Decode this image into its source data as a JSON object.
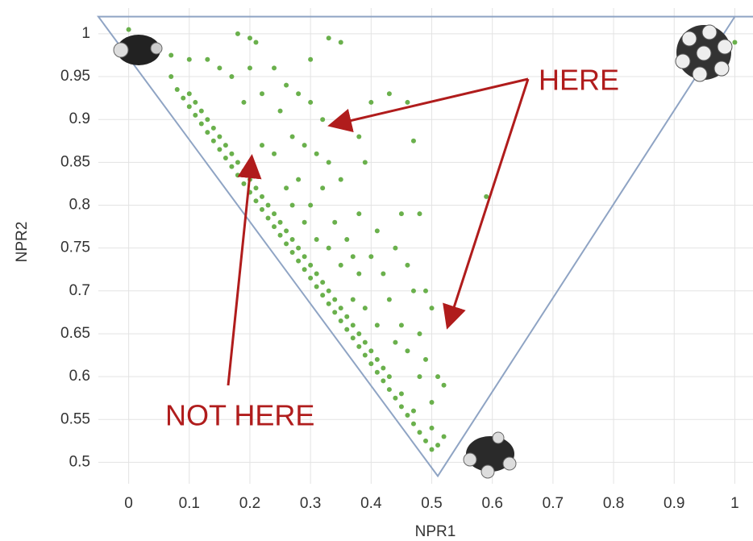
{
  "chart_data": {
    "type": "scatter",
    "xlabel": "NPR1",
    "ylabel": "NPR2",
    "xlim": [
      -0.05,
      1.03
    ],
    "ylim": [
      0.475,
      1.03
    ],
    "xticks": [
      0,
      0.1,
      0.2,
      0.3,
      0.4,
      0.5,
      0.6,
      0.7,
      0.8,
      0.9,
      1
    ],
    "yticks": [
      0.5,
      0.55,
      0.6,
      0.65,
      0.7,
      0.75,
      0.8,
      0.85,
      0.9,
      0.95,
      1
    ],
    "grid": true,
    "color": "#6ab04c",
    "line_color": "#8fa4c4",
    "reference_lines": {
      "x": [
        1.03,
        -0.05,
        0.51,
        1.0
      ],
      "y": [
        1.02,
        1.02,
        0.484,
        1.02
      ]
    },
    "annotations": [
      "HERE",
      "NOT HERE"
    ],
    "x": [
      0.07,
      0.08,
      0.09,
      0.1,
      0.1,
      0.11,
      0.11,
      0.12,
      0.12,
      0.13,
      0.13,
      0.14,
      0.14,
      0.15,
      0.15,
      0.16,
      0.16,
      0.17,
      0.17,
      0.18,
      0.18,
      0.19,
      0.19,
      0.2,
      0.2,
      0.21,
      0.21,
      0.22,
      0.22,
      0.23,
      0.23,
      0.24,
      0.24,
      0.25,
      0.25,
      0.26,
      0.26,
      0.27,
      0.27,
      0.28,
      0.28,
      0.29,
      0.29,
      0.3,
      0.3,
      0.31,
      0.31,
      0.32,
      0.32,
      0.33,
      0.33,
      0.34,
      0.34,
      0.35,
      0.35,
      0.36,
      0.36,
      0.37,
      0.37,
      0.38,
      0.38,
      0.39,
      0.39,
      0.4,
      0.4,
      0.41,
      0.41,
      0.42,
      0.42,
      0.43,
      0.43,
      0.44,
      0.45,
      0.45,
      0.46,
      0.47,
      0.47,
      0.48,
      0.49,
      0.5,
      0.51,
      0.0,
      0.18,
      0.2,
      0.21,
      0.33,
      0.35,
      1.0,
      0.07,
      0.1,
      0.13,
      0.15,
      0.17,
      0.2,
      0.24,
      0.3,
      0.26,
      0.28,
      0.3,
      0.32,
      0.22,
      0.19,
      0.25,
      0.27,
      0.29,
      0.31,
      0.33,
      0.36,
      0.38,
      0.4,
      0.43,
      0.46,
      0.47,
      0.39,
      0.35,
      0.32,
      0.28,
      0.24,
      0.22,
      0.26,
      0.3,
      0.34,
      0.36,
      0.38,
      0.41,
      0.45,
      0.48,
      0.59,
      0.4,
      0.42,
      0.44,
      0.46,
      0.38,
      0.35,
      0.33,
      0.31,
      0.29,
      0.43,
      0.45,
      0.47,
      0.49,
      0.5,
      0.48,
      0.46,
      0.44,
      0.41,
      0.39,
      0.37,
      0.49,
      0.51,
      0.5,
      0.52,
      0.48,
      0.5,
      0.52,
      0.37,
      0.27
    ],
    "values": [
      0.95,
      0.935,
      0.925,
      0.915,
      0.93,
      0.905,
      0.92,
      0.895,
      0.91,
      0.885,
      0.9,
      0.875,
      0.89,
      0.865,
      0.88,
      0.855,
      0.87,
      0.845,
      0.86,
      0.835,
      0.85,
      0.825,
      0.84,
      0.815,
      0.83,
      0.805,
      0.82,
      0.795,
      0.81,
      0.785,
      0.8,
      0.775,
      0.79,
      0.765,
      0.78,
      0.755,
      0.77,
      0.745,
      0.76,
      0.735,
      0.75,
      0.725,
      0.74,
      0.715,
      0.73,
      0.705,
      0.72,
      0.695,
      0.71,
      0.685,
      0.7,
      0.675,
      0.69,
      0.665,
      0.68,
      0.655,
      0.67,
      0.645,
      0.66,
      0.635,
      0.65,
      0.625,
      0.64,
      0.615,
      0.63,
      0.605,
      0.62,
      0.595,
      0.61,
      0.585,
      0.6,
      0.575,
      0.565,
      0.58,
      0.555,
      0.545,
      0.56,
      0.535,
      0.525,
      0.515,
      0.52,
      1.005,
      1.0,
      0.995,
      0.99,
      0.995,
      0.99,
      0.99,
      0.975,
      0.97,
      0.97,
      0.96,
      0.95,
      0.96,
      0.96,
      0.97,
      0.94,
      0.93,
      0.92,
      0.9,
      0.93,
      0.92,
      0.91,
      0.88,
      0.87,
      0.86,
      0.85,
      0.9,
      0.88,
      0.92,
      0.93,
      0.92,
      0.875,
      0.85,
      0.83,
      0.82,
      0.83,
      0.86,
      0.87,
      0.82,
      0.8,
      0.78,
      0.76,
      0.79,
      0.77,
      0.79,
      0.79,
      0.81,
      0.74,
      0.72,
      0.75,
      0.73,
      0.72,
      0.73,
      0.75,
      0.76,
      0.78,
      0.69,
      0.66,
      0.7,
      0.7,
      0.68,
      0.65,
      0.63,
      0.64,
      0.66,
      0.68,
      0.69,
      0.62,
      0.6,
      0.57,
      0.59,
      0.6,
      0.54,
      0.53,
      0.74,
      0.8
    ]
  }
}
